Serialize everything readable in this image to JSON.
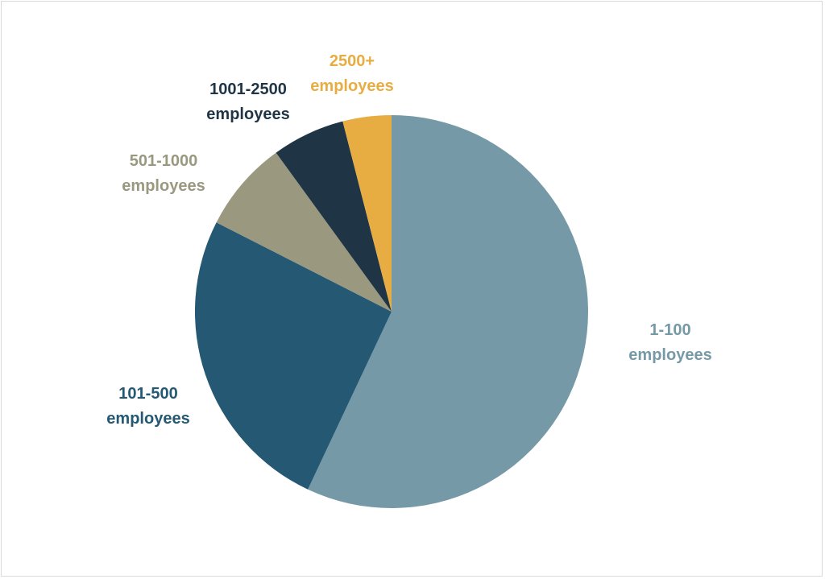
{
  "chart_data": {
    "type": "pie",
    "title": "",
    "start_angle_deg": 0,
    "direction": "clockwise",
    "slices": [
      {
        "label": [
          "1-100",
          "employees"
        ],
        "value": 57.0,
        "color": "#7599a6"
      },
      {
        "label": [
          "101-500",
          "employees"
        ],
        "value": 25.5,
        "color": "#245873"
      },
      {
        "label": [
          "501-1000",
          "employees"
        ],
        "value": 7.5,
        "color": "#9a987e"
      },
      {
        "label": [
          "1001-2500",
          "employees"
        ],
        "value": 6.0,
        "color": "#1f3545"
      },
      {
        "label": [
          "2500+",
          "employees"
        ],
        "value": 4.0,
        "color": "#e8ad42"
      }
    ]
  }
}
